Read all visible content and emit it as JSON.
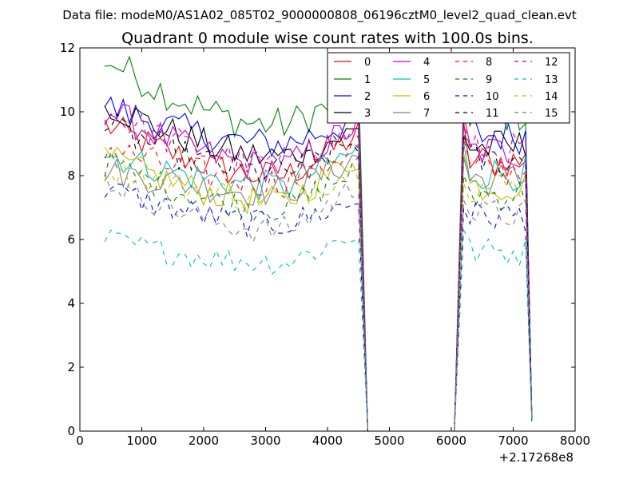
{
  "suptitle": "Data file: modeM0/AS1A02_085T02_9000000808_06196cztM0_level2_quad_clean.evt",
  "chart_data": {
    "type": "line",
    "title": "Quadrant 0 module wise count rates with 100.0s bins.",
    "xlabel": "",
    "ylabel": "",
    "x_offset_label": "+2.17268e8",
    "xlim": [
      0,
      8000
    ],
    "ylim": [
      0,
      12
    ],
    "xticks": [
      "0",
      "1000",
      "2000",
      "3000",
      "4000",
      "5000",
      "6000",
      "7000",
      "8000"
    ],
    "yticks": [
      "0",
      "2",
      "4",
      "6",
      "8",
      "10",
      "12"
    ],
    "legend_position": "top-right",
    "legend_columns": 4,
    "x_segments": {
      "first_start": 400,
      "first_end": 4500,
      "drop_to_zero": 4650,
      "zero_end": 6100,
      "second_start": 6200,
      "second_end": 7200,
      "last": 7300,
      "step": 100
    },
    "series": [
      {
        "name": "0",
        "color": "#ff0000",
        "dash": "solid",
        "level": 8.0,
        "start": 9.6,
        "end": 9.3,
        "last": 0.5
      },
      {
        "name": "1",
        "color": "#008000",
        "dash": "solid",
        "level": 9.6,
        "start": 11.7,
        "end": 10.6,
        "last": 0.5
      },
      {
        "name": "2",
        "color": "#0000ff",
        "dash": "solid",
        "level": 9.0,
        "start": 10.2,
        "end": 9.8,
        "last": 0.5
      },
      {
        "name": "3",
        "color": "#000000",
        "dash": "solid",
        "level": 8.6,
        "start": 10.3,
        "end": 9.4,
        "last": 0.4
      },
      {
        "name": "4",
        "color": "#bf00bf",
        "dash": "solid",
        "level": 8.3,
        "start": 10.1,
        "end": 9.6,
        "last": 0.4
      },
      {
        "name": "5",
        "color": "#00bfbf",
        "dash": "solid",
        "level": 7.7,
        "start": 8.7,
        "end": 8.8,
        "last": 0.4
      },
      {
        "name": "6",
        "color": "#bfbf00",
        "dash": "solid",
        "level": 7.2,
        "start": 8.6,
        "end": 8.6,
        "last": 0.4
      },
      {
        "name": "7",
        "color": "#808080",
        "dash": "solid",
        "level": 7.5,
        "start": 8.2,
        "end": 8.6,
        "last": 0.4
      },
      {
        "name": "8",
        "color": "#ff0000",
        "dash": "dashed",
        "level": 7.8,
        "start": 8.9,
        "end": 8.9,
        "last": 0.4
      },
      {
        "name": "9",
        "color": "#008000",
        "dash": "dashed",
        "level": 7.0,
        "start": 8.4,
        "end": 8.2,
        "last": 0.4
      },
      {
        "name": "10",
        "color": "#0000ff",
        "dash": "dashed",
        "level": 6.5,
        "start": 7.6,
        "end": 7.2,
        "last": 0.3
      },
      {
        "name": "11",
        "color": "#000000",
        "dash": "dashed",
        "level": 8.1,
        "start": 9.6,
        "end": 9.1,
        "last": 0.4
      },
      {
        "name": "12",
        "color": "#bf00bf",
        "dash": "dashed",
        "level": 8.4,
        "start": 10.0,
        "end": 9.4,
        "last": 0.4
      },
      {
        "name": "13",
        "color": "#00bfbf",
        "dash": "dashed",
        "level": 5.3,
        "start": 6.0,
        "end": 6.2,
        "last": 0.3
      },
      {
        "name": "14",
        "color": "#bfbf00",
        "dash": "dashed",
        "level": 7.3,
        "start": 8.3,
        "end": 8.3,
        "last": 0.4
      },
      {
        "name": "15",
        "color": "#808080",
        "dash": "dashed",
        "level": 6.3,
        "start": 7.9,
        "end": 7.7,
        "last": 0.3
      }
    ]
  }
}
